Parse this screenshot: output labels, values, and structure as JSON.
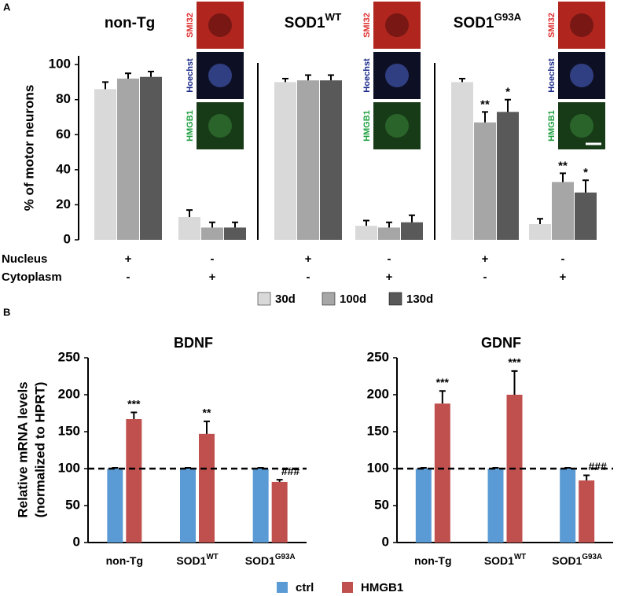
{
  "panel_labels": [
    "A",
    "B"
  ],
  "chart_data": [
    {
      "type": "bar",
      "group_titles": [
        [
          "non-Tg"
        ],
        [
          "SOD1",
          "WT"
        ],
        [
          "SOD1",
          "G93A"
        ]
      ],
      "image_labels": [
        "SMI32",
        "Hoechst",
        "HMGB1"
      ],
      "image_label_colors": [
        "#e03030",
        "#1a2a8a",
        "#1fa040"
      ],
      "ylabel": "% of motor neurons",
      "row_labels": [
        "Nucleus",
        "Cytoplasm"
      ],
      "nucleus": [
        "+",
        "-",
        "+",
        "-",
        "+",
        "-"
      ],
      "cytoplasm": [
        "-",
        "+",
        "-",
        "+",
        "-",
        "+"
      ],
      "ylim": [
        0,
        105
      ],
      "yticks": [
        0,
        20,
        40,
        60,
        80,
        100
      ],
      "series": [
        {
          "name": "30d",
          "color": "#d9d9d9",
          "values": [
            86,
            13,
            90,
            8,
            90,
            9
          ],
          "errors": [
            4,
            4,
            2,
            3,
            2,
            3
          ],
          "annotations": [
            null,
            null,
            null,
            null,
            null,
            null
          ]
        },
        {
          "name": "100d",
          "color": "#a6a6a6",
          "values": [
            92,
            7,
            91,
            7,
            67,
            33
          ],
          "errors": [
            3,
            3,
            3,
            3,
            6,
            5
          ],
          "annotations": [
            null,
            null,
            null,
            null,
            "**",
            "**"
          ]
        },
        {
          "name": "130d",
          "color": "#595959",
          "values": [
            93,
            7,
            91,
            10,
            73,
            27
          ],
          "errors": [
            3,
            3,
            3,
            4,
            7,
            7
          ],
          "annotations": [
            null,
            null,
            null,
            null,
            "*",
            "*"
          ]
        }
      ]
    },
    {
      "type": "bar",
      "title": "BDNF",
      "ylabel": [
        "Relative mRNA levels",
        "(normalized to HPRT)"
      ],
      "categories": [
        [
          "non-Tg"
        ],
        [
          "SOD1",
          "WT"
        ],
        [
          "SOD1",
          "G93A"
        ]
      ],
      "ylim": [
        0,
        250
      ],
      "yticks": [
        0,
        50,
        100,
        150,
        200,
        250
      ],
      "reference_line": 100,
      "series": [
        {
          "name": "ctrl",
          "color": "#5b9bd5",
          "values": [
            100,
            100,
            100
          ],
          "errors": [
            1,
            1,
            1
          ],
          "annotations": [
            null,
            null,
            null
          ]
        },
        {
          "name": "HMGB1",
          "color": "#c0504d",
          "values": [
            167,
            147,
            82
          ],
          "errors": [
            9,
            17,
            3
          ],
          "annotations": [
            "***",
            "**",
            "###"
          ]
        }
      ]
    },
    {
      "type": "bar",
      "title": "GDNF",
      "categories": [
        [
          "non-Tg"
        ],
        [
          "SOD1",
          "WT"
        ],
        [
          "SOD1",
          "G93A"
        ]
      ],
      "ylim": [
        0,
        250
      ],
      "yticks": [
        0,
        50,
        100,
        150,
        200,
        250
      ],
      "reference_line": 100,
      "series": [
        {
          "name": "ctrl",
          "color": "#5b9bd5",
          "values": [
            100,
            100,
            100
          ],
          "errors": [
            1,
            1,
            1
          ],
          "annotations": [
            null,
            null,
            null
          ]
        },
        {
          "name": "HMGB1",
          "color": "#c0504d",
          "values": [
            188,
            200,
            84
          ],
          "errors": [
            17,
            32,
            7
          ],
          "annotations": [
            "***",
            "***",
            "###"
          ]
        }
      ]
    }
  ]
}
